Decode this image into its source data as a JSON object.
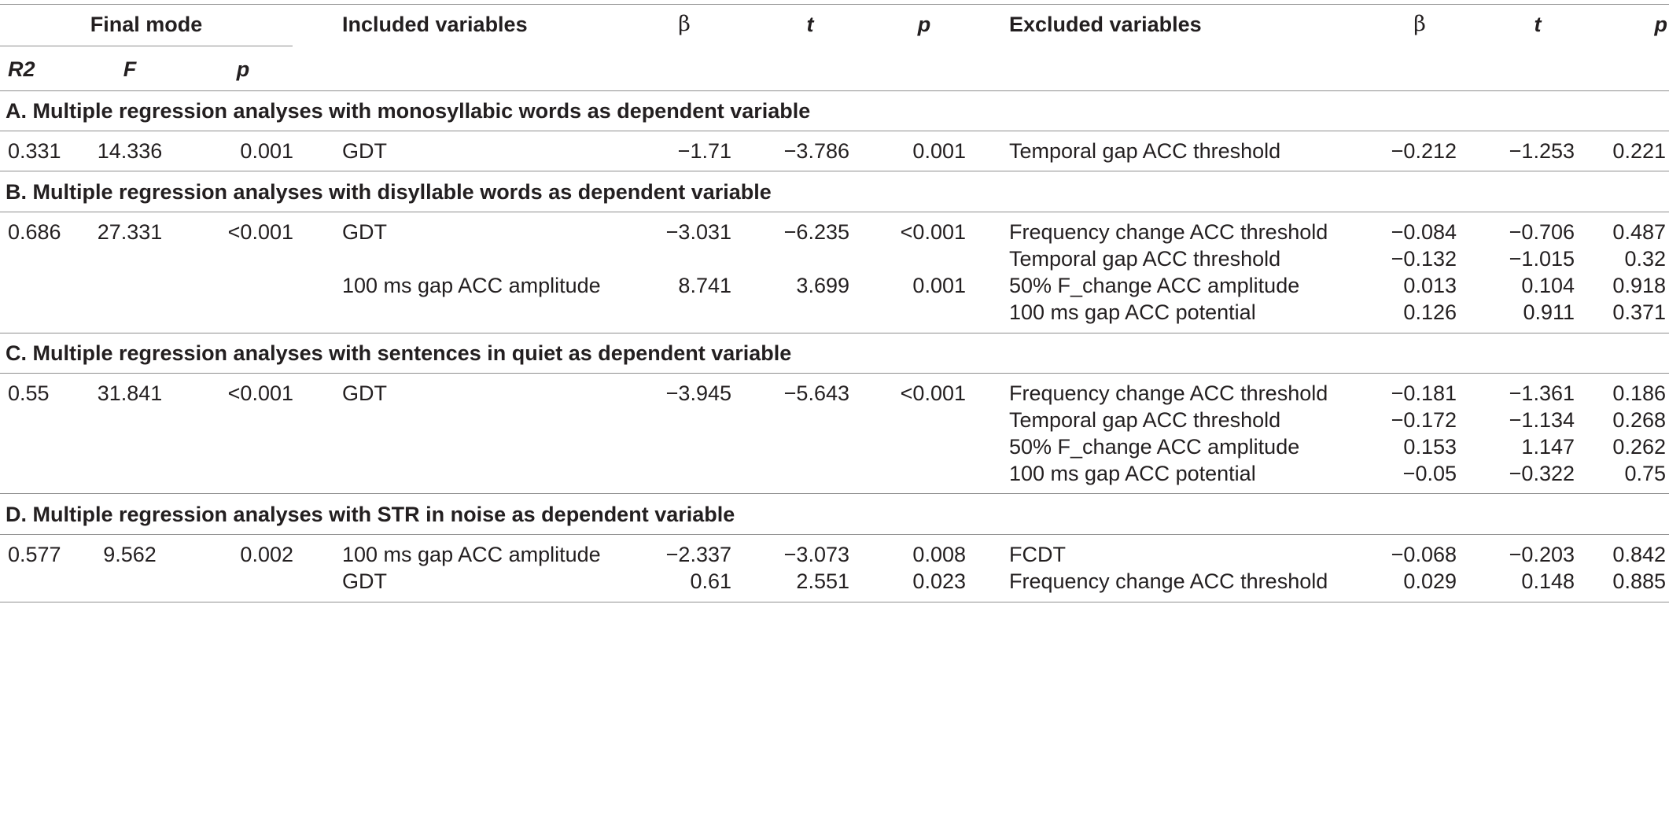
{
  "header": {
    "final_mode": "Final mode",
    "r2": "R2",
    "f": "F",
    "p": "p",
    "included": "Included variables",
    "beta": "β",
    "t": "t",
    "excluded": "Excluded variables"
  },
  "sections": [
    {
      "title": "A. Multiple regression analyses with monosyllabic words as dependent variable",
      "rows": [
        {
          "r2": "0.331",
          "f": "14.336",
          "p": "0.001",
          "inc": "GDT",
          "ib": "−1.71",
          "it": "−3.786",
          "ip": "0.001",
          "exc": "Temporal gap ACC threshold",
          "eb": "−0.212",
          "et": "−1.253",
          "ep": "0.221"
        }
      ]
    },
    {
      "title": "B. Multiple regression analyses with disyllable words as dependent variable",
      "rows": [
        {
          "r2": "0.686",
          "f": "27.331",
          "p": "<0.001",
          "inc": "GDT",
          "ib": "−3.031",
          "it": "−6.235",
          "ip": "<0.001",
          "exc": "Frequency change ACC threshold",
          "eb": "−0.084",
          "et": "−0.706",
          "ep": "0.487"
        },
        {
          "exc": "Temporal gap ACC threshold",
          "eb": "−0.132",
          "et": "−1.015",
          "ep": "0.32"
        },
        {
          "inc": "100 ms gap ACC amplitude",
          "ib": "8.741",
          "it": "3.699",
          "ip": "0.001",
          "exc": "50% F_change ACC amplitude",
          "eb": "0.013",
          "et": "0.104",
          "ep": "0.918"
        },
        {
          "exc": "100 ms gap ACC potential",
          "eb": "0.126",
          "et": "0.911",
          "ep": "0.371"
        }
      ]
    },
    {
      "title": "C. Multiple regression analyses with sentences in quiet as dependent variable",
      "rows": [
        {
          "r2": "0.55",
          "f": "31.841",
          "p": "<0.001",
          "inc": "GDT",
          "ib": "−3.945",
          "it": "−5.643",
          "ip": "<0.001",
          "exc": "Frequency change ACC threshold",
          "eb": "−0.181",
          "et": "−1.361",
          "ep": "0.186"
        },
        {
          "exc": "Temporal gap ACC threshold",
          "eb": "−0.172",
          "et": "−1.134",
          "ep": "0.268"
        },
        {
          "exc": "50% F_change ACC amplitude",
          "eb": "0.153",
          "et": "1.147",
          "ep": "0.262"
        },
        {
          "exc": "100 ms gap ACC potential",
          "eb": "−0.05",
          "et": "−0.322",
          "ep": "0.75"
        }
      ]
    },
    {
      "title": "D. Multiple regression analyses with STR in noise as dependent variable",
      "rows": [
        {
          "r2": "0.577",
          "f": "9.562",
          "p": "0.002",
          "inc": "100 ms gap ACC amplitude",
          "ib": "−2.337",
          "it": "−3.073",
          "ip": "0.008",
          "exc": "FCDT",
          "eb": "−0.068",
          "et": "−0.203",
          "ep": "0.842"
        },
        {
          "inc": "GDT",
          "ib": "0.61",
          "it": "2.551",
          "ip": "0.023",
          "exc": "Frequency change ACC threshold",
          "eb": "0.029",
          "et": "0.148",
          "ep": "0.885"
        }
      ]
    }
  ]
}
